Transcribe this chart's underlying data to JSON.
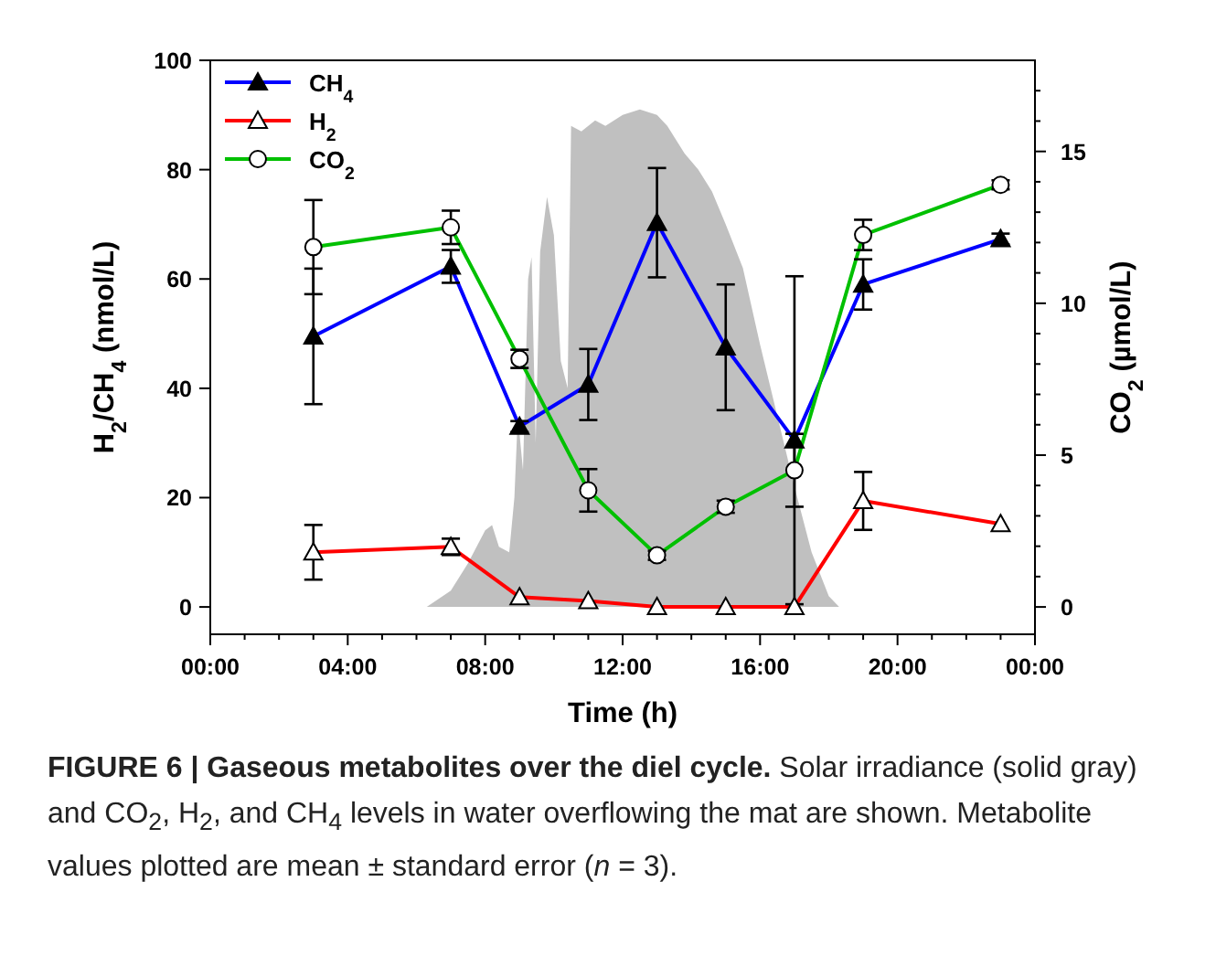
{
  "chart_data": {
    "type": "line",
    "title": "FIGURE 6 | Gaseous metabolites over the diel cycle.",
    "xlabel": "Time (h)",
    "ylabel": "H$_{2}$/CH$_{4}$ (nmol/L)",
    "y2label": "CO$_{2}$ (µmol/L)",
    "annotations": [
      "Solar irradiance (solid gray) and CO$_{2}$, H$_{2}$, and CH$_{4}$ levels in water overflowing the mat are shown. Metabolite values plotted are mean ± standard error (n = 3)."
    ],
    "x": [
      3,
      7,
      9,
      11,
      13,
      15,
      17,
      19,
      23
    ],
    "xlim": [
      0,
      24
    ],
    "xticks": [
      {
        "value": 0,
        "label": "00:00"
      },
      {
        "value": 1,
        "label": null
      },
      {
        "value": 2,
        "label": null
      },
      {
        "value": 3,
        "label": null
      },
      {
        "value": 4,
        "label": "04:00"
      },
      {
        "value": 5,
        "label": null
      },
      {
        "value": 6,
        "label": null
      },
      {
        "value": 7,
        "label": null
      },
      {
        "value": 8,
        "label": "08:00"
      },
      {
        "value": 9,
        "label": null
      },
      {
        "value": 10,
        "label": null
      },
      {
        "value": 11,
        "label": null
      },
      {
        "value": 12,
        "label": "12:00"
      },
      {
        "value": 13,
        "label": null
      },
      {
        "value": 14,
        "label": null
      },
      {
        "value": 15,
        "label": null
      },
      {
        "value": 16,
        "label": "16:00"
      },
      {
        "value": 17,
        "label": null
      },
      {
        "value": 18,
        "label": null
      },
      {
        "value": 19,
        "label": null
      },
      {
        "value": 20,
        "label": "20:00"
      },
      {
        "value": 21,
        "label": null
      },
      {
        "value": 22,
        "label": null
      },
      {
        "value": 23,
        "label": null
      },
      {
        "value": 24,
        "label": "00:00"
      }
    ],
    "ylim": [
      -5,
      100
    ],
    "yticks": [
      0,
      20,
      40,
      60,
      80,
      100
    ],
    "y2lim": [
      -0.9,
      18
    ],
    "y2ticks": [
      0,
      {
        "value": 1,
        "label": null
      },
      {
        "value": 2,
        "label": null
      },
      {
        "value": 3,
        "label": null
      },
      {
        "value": 4,
        "label": null
      },
      5,
      {
        "value": 6,
        "label": null
      },
      {
        "value": 7,
        "label": null
      },
      {
        "value": 8,
        "label": null
      },
      {
        "value": 9,
        "label": null
      },
      10,
      {
        "value": 11,
        "label": null
      },
      {
        "value": 12,
        "label": null
      },
      {
        "value": 13,
        "label": null
      },
      {
        "value": 14,
        "label": null
      },
      15,
      {
        "value": 16,
        "label": null
      },
      {
        "value": 17,
        "label": null
      }
    ],
    "legend": "top left",
    "grid": false,
    "line_style": "solid",
    "series": [
      {
        "type": "area",
        "color": "#c0c0c0",
        "x": [
          6.3,
          7,
          7.5,
          8,
          8.2,
          8.4,
          8.7,
          8.85,
          8.95,
          9.1,
          9.25,
          9.35,
          9.47,
          9.6,
          9.8,
          10,
          10.2,
          10.4,
          10.5,
          10.8,
          11.2,
          11.5,
          12,
          12.5,
          13,
          13.3,
          13.8,
          14.2,
          14.6,
          15,
          15.5,
          16,
          16.5,
          17,
          17.5,
          18,
          18.3
        ],
        "values": [
          0,
          3,
          8,
          14,
          15,
          11,
          10,
          20,
          35,
          25,
          60,
          64,
          30,
          65,
          75,
          68,
          45,
          40,
          88,
          87,
          89,
          88,
          90,
          91,
          90,
          88,
          83,
          80,
          76,
          70,
          62,
          48,
          35,
          22,
          10,
          2,
          0
        ]
      },
      {
        "name": "CH$_{4}$",
        "color": "#0000ff",
        "marker": "triangle",
        "values": [
          49.5,
          62.3,
          33,
          40.7,
          70.3,
          47.5,
          30.5,
          59,
          67.3
        ],
        "errors": [
          12.4,
          3,
          1,
          6.5,
          10,
          11.5,
          30,
          4.6,
          1
        ]
      },
      {
        "name": "H$_{2}$",
        "color": "#ff0000",
        "marker": "triangle",
        "values": [
          10,
          11,
          1.8,
          1.1,
          0,
          0,
          0,
          19.4,
          15.2
        ],
        "errors": [
          5,
          1.5,
          null,
          null,
          null,
          null,
          null,
          5.3,
          null
        ]
      },
      {
        "name": "CO$_{2}$",
        "color": "#00c000",
        "marker": "circle",
        "axis": "y2",
        "values": [
          11.85,
          12.5,
          8.17,
          3.84,
          1.7,
          3.3,
          4.5,
          12.25,
          13.9
        ],
        "errors": [
          1.55,
          0.55,
          0.3,
          0.7,
          0.15,
          0.2,
          1.2,
          0.5,
          0.15
        ]
      }
    ]
  }
}
